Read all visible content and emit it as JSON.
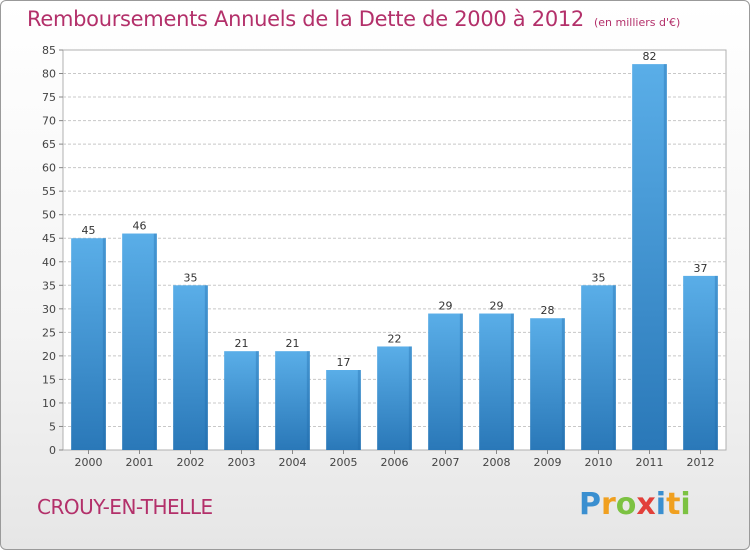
{
  "title": "Remboursements Annuels de la Dette de 2000 à 2012",
  "subtitle": "(en milliers d'€)",
  "town": "CROUY-EN-THELLE",
  "logo": {
    "letters": [
      "P",
      "r",
      "o",
      "x",
      "i",
      "t",
      "i"
    ]
  },
  "colors": {
    "title": "#b3306a",
    "bar_top": "#5aaee8",
    "bar_bottom": "#2a78b8",
    "grid": "#c8c8c8"
  },
  "chart_data": {
    "type": "bar",
    "categories": [
      "2000",
      "2001",
      "2002",
      "2003",
      "2004",
      "2005",
      "2006",
      "2007",
      "2008",
      "2009",
      "2010",
      "2011",
      "2012"
    ],
    "values": [
      45,
      46,
      35,
      21,
      21,
      17,
      22,
      29,
      29,
      28,
      35,
      82,
      37
    ],
    "yticks": [
      0,
      5,
      10,
      15,
      20,
      25,
      30,
      35,
      40,
      45,
      50,
      55,
      60,
      65,
      70,
      75,
      80,
      85
    ],
    "ylim": [
      0,
      85
    ],
    "grid": true,
    "data_labels": true
  }
}
